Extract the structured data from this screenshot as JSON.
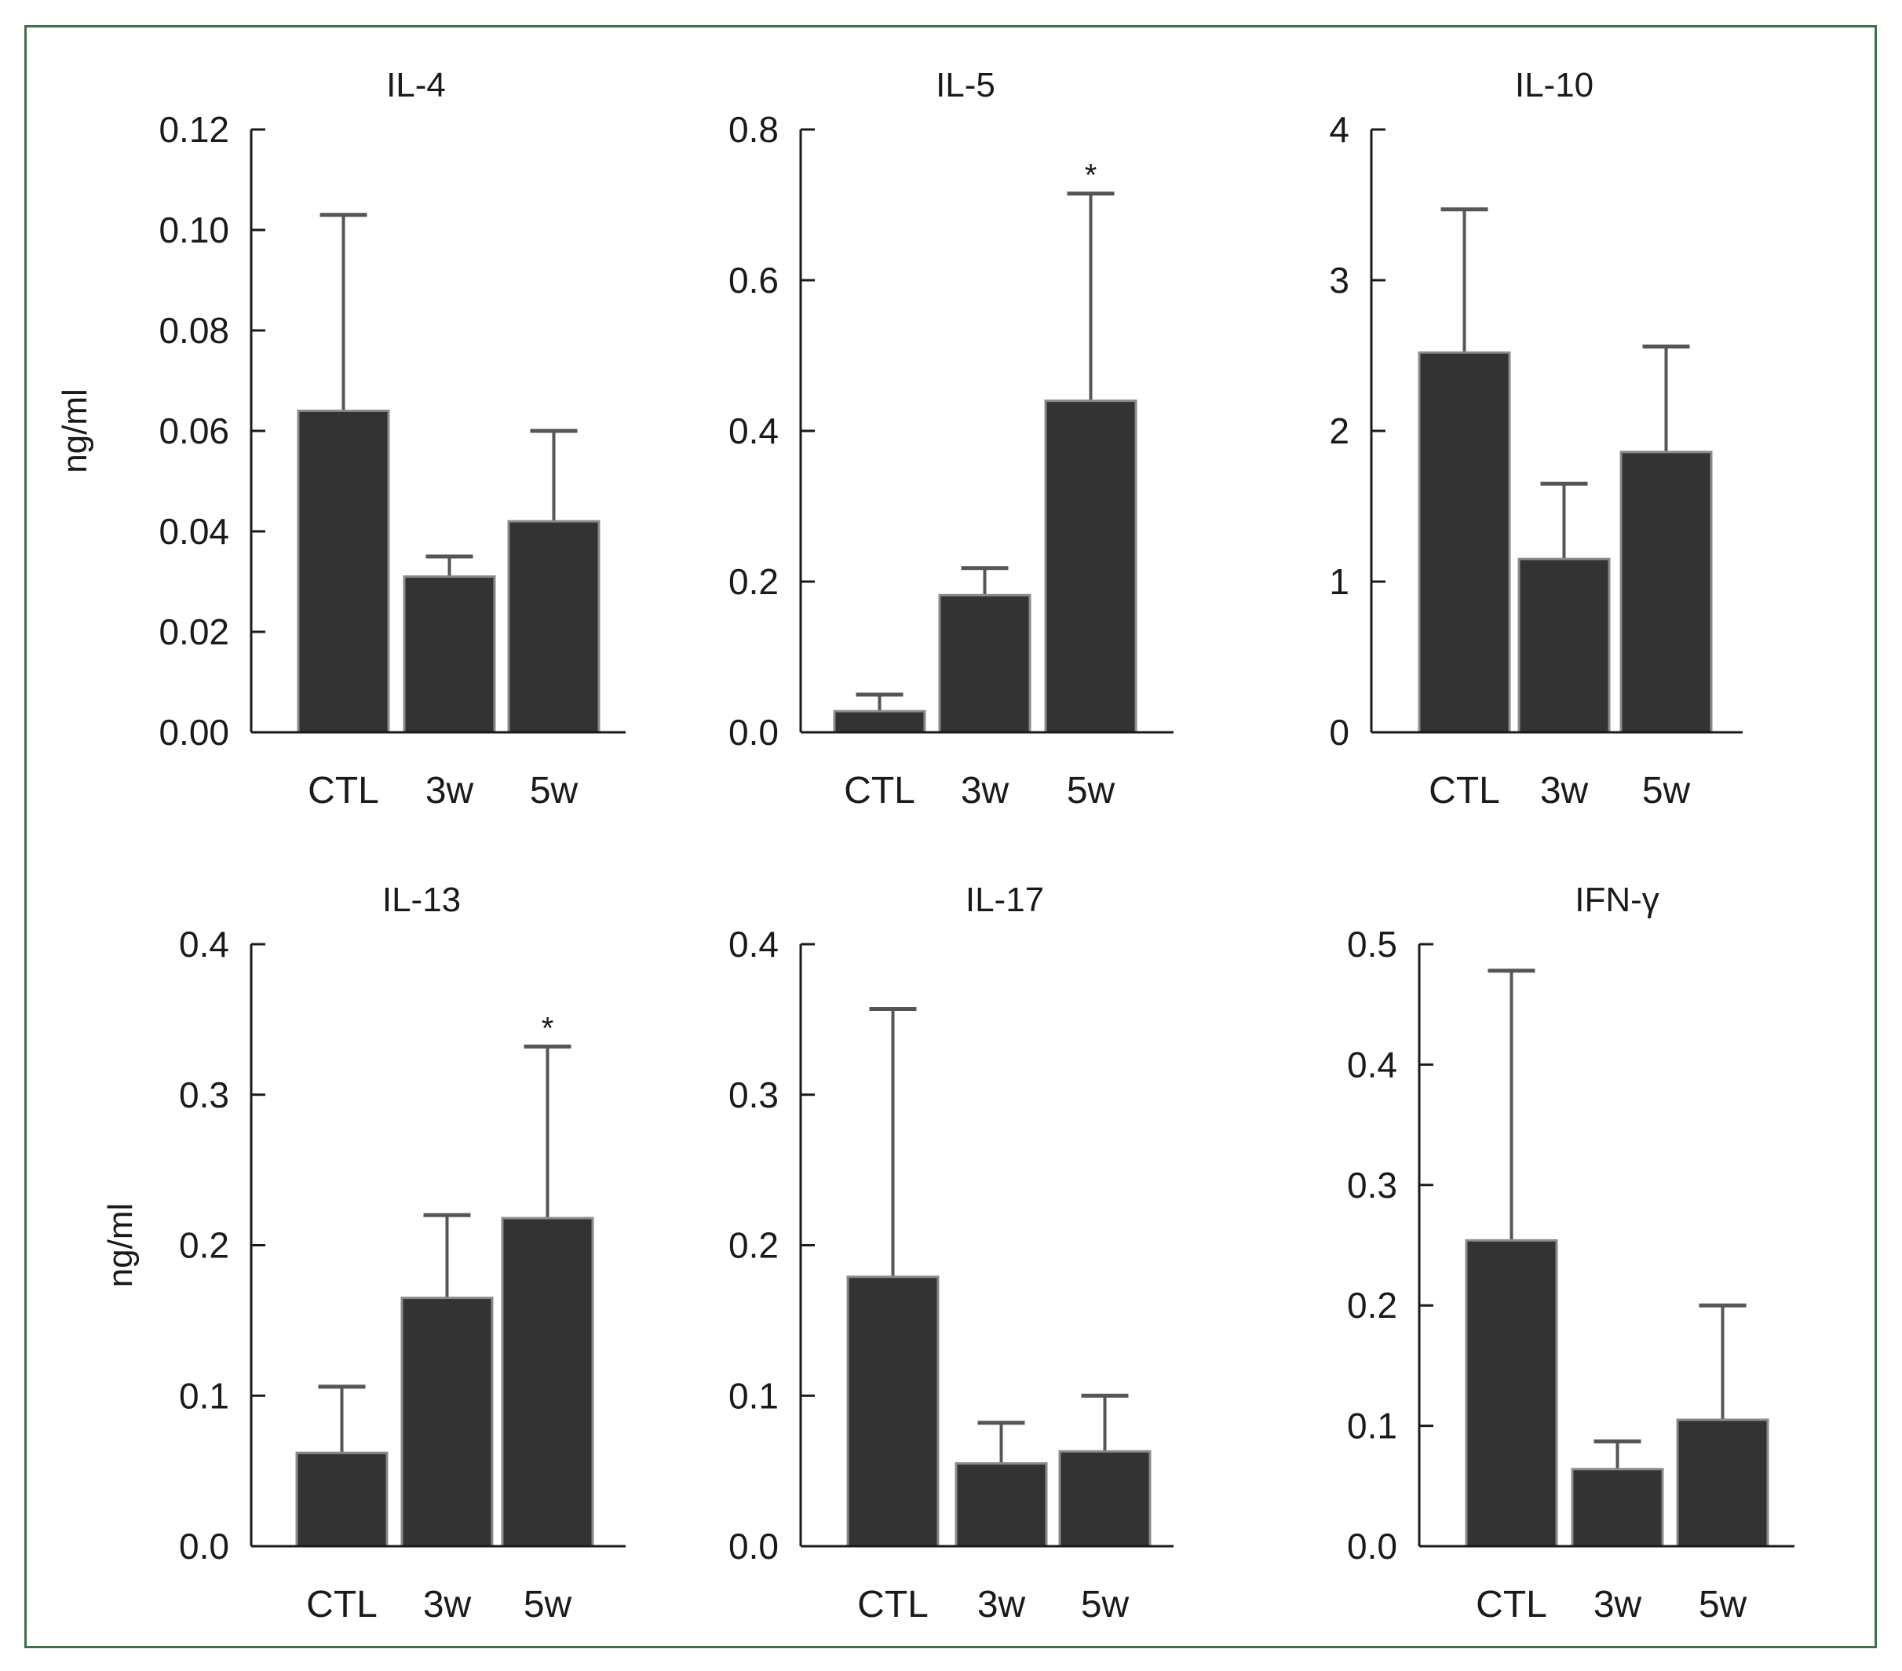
{
  "style": {
    "frame_color": "#3f6f4a",
    "bar_color": "#333333",
    "bar_edge_color": "#8a8a8a",
    "axis_color": "#1a1a1a",
    "errorbar_color": "#555555"
  },
  "chart_data": [
    {
      "type": "bar",
      "title": "IL-4",
      "ylabel": "ng/ml",
      "categories": [
        "CTL",
        "3w",
        "5w"
      ],
      "values": [
        0.064,
        0.031,
        0.042
      ],
      "error_upper": [
        0.103,
        0.035,
        0.06
      ],
      "ylim": [
        0,
        0.12
      ],
      "yticks": [
        "0.00",
        "0.02",
        "0.04",
        "0.06",
        "0.08",
        "0.10",
        "0.12"
      ],
      "annotations": [
        "",
        "",
        ""
      ]
    },
    {
      "type": "bar",
      "title": "IL-5",
      "ylabel": "",
      "categories": [
        "CTL",
        "3w",
        "5w"
      ],
      "values": [
        0.028,
        0.182,
        0.44
      ],
      "error_upper": [
        0.05,
        0.218,
        0.715
      ],
      "ylim": [
        0,
        0.8
      ],
      "yticks": [
        "0.0",
        "0.2",
        "0.4",
        "0.6",
        "0.8"
      ],
      "annotations": [
        "",
        "",
        "*"
      ]
    },
    {
      "type": "bar",
      "title": "IL-10",
      "ylabel": "",
      "categories": [
        "CTL",
        "3w",
        "5w"
      ],
      "values": [
        2.52,
        1.15,
        1.86
      ],
      "error_upper": [
        3.47,
        1.65,
        2.56
      ],
      "ylim": [
        0,
        4
      ],
      "yticks": [
        "0",
        "1",
        "2",
        "3",
        "4"
      ],
      "annotations": [
        "",
        "",
        ""
      ]
    },
    {
      "type": "bar",
      "title": "IL-13",
      "ylabel": "ng/ml",
      "categories": [
        "CTL",
        "3w",
        "5w"
      ],
      "values": [
        0.062,
        0.165,
        0.218
      ],
      "error_upper": [
        0.106,
        0.22,
        0.332
      ],
      "ylim": [
        0,
        0.4
      ],
      "yticks": [
        "0.0",
        "0.1",
        "0.2",
        "0.3",
        "0.4"
      ],
      "annotations": [
        "",
        "",
        "*"
      ]
    },
    {
      "type": "bar",
      "title": "IL-17",
      "ylabel": "",
      "categories": [
        "CTL",
        "3w",
        "5w"
      ],
      "values": [
        0.179,
        0.055,
        0.063
      ],
      "error_upper": [
        0.357,
        0.082,
        0.1
      ],
      "ylim": [
        0,
        0.4
      ],
      "yticks": [
        "0.0",
        "0.1",
        "0.2",
        "0.3",
        "0.4"
      ],
      "annotations": [
        "",
        "",
        ""
      ]
    },
    {
      "type": "bar",
      "title": "IFN-γ",
      "ylabel": "",
      "categories": [
        "CTL",
        "3w",
        "5w"
      ],
      "values": [
        0.254,
        0.064,
        0.105
      ],
      "error_upper": [
        0.478,
        0.087,
        0.2
      ],
      "ylim": [
        0,
        0.5
      ],
      "yticks": [
        "0.0",
        "0.1",
        "0.2",
        "0.3",
        "0.4",
        "0.5"
      ],
      "annotations": [
        "",
        "",
        ""
      ]
    }
  ]
}
